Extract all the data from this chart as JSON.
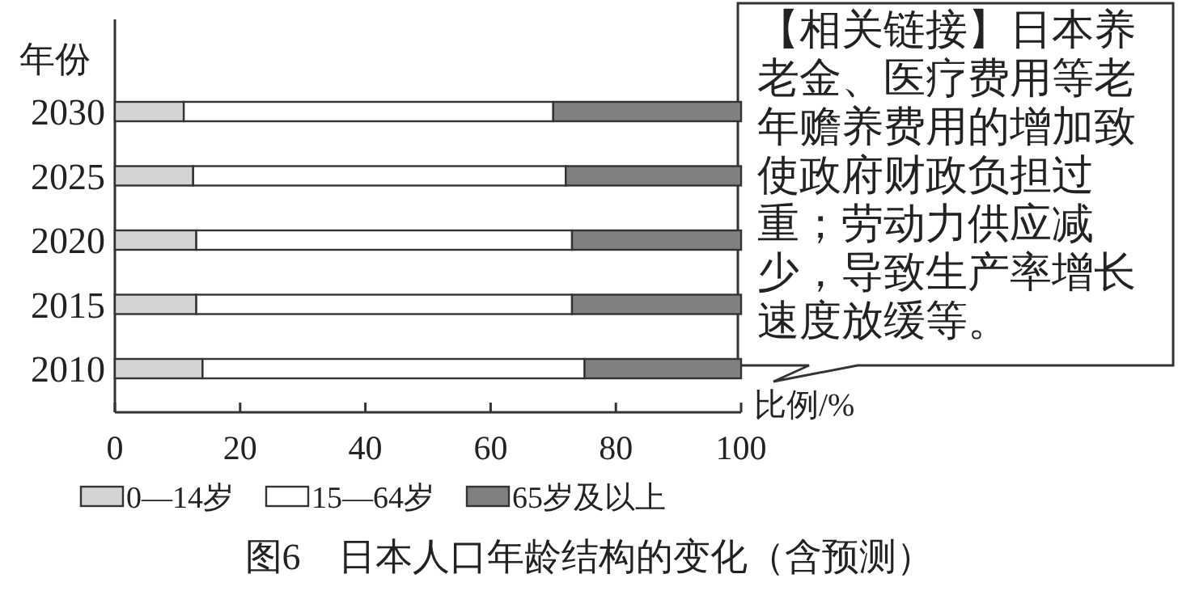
{
  "chart_data": {
    "type": "bar",
    "orientation": "horizontal",
    "stacked": true,
    "title": "图6　日本人口年龄结构的变化（含预测）",
    "ylabel": "年份",
    "xlabel": "比例/%",
    "categories": [
      "2030",
      "2025",
      "2020",
      "2015",
      "2010"
    ],
    "series": [
      {
        "name": "0—14岁",
        "color": "#d4d4d4",
        "values": [
          11,
          12.5,
          13,
          13,
          14
        ]
      },
      {
        "name": "15—64岁",
        "color": "#ffffff",
        "values": [
          59,
          59.5,
          60,
          60,
          61
        ]
      },
      {
        "name": "65岁及以上",
        "color": "#808080",
        "values": [
          30,
          28,
          27,
          27,
          25
        ]
      }
    ],
    "xlim": [
      0,
      100
    ],
    "xticks": [
      0,
      20,
      40,
      60,
      80,
      100
    ],
    "legend": "bottom",
    "grid": false,
    "annotations": [
      "【相关链接】日本养老金、医疗费用等老年赡养费用的增加致使政府财政负担过重；劳动力供应减少，导致生产率增长速度放缓等。"
    ]
  }
}
